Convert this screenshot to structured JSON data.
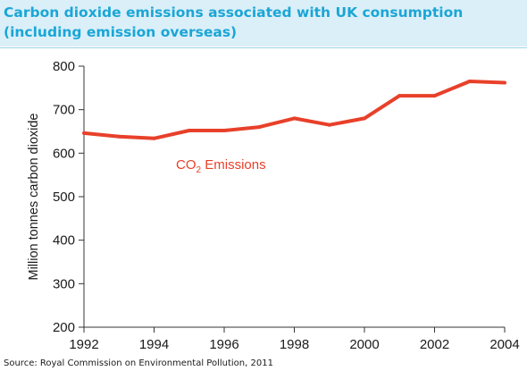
{
  "title": "Carbon dioxide emissions associated with UK consumption (including emission overseas)",
  "source": "Source: Royal Commission on Environmental Pollution, 2011",
  "chart_data": {
    "type": "line",
    "title": "Carbon dioxide emissions associated with UK consumption (including emission overseas)",
    "xlabel": "",
    "ylabel": "Million tonnes carbon dioxide",
    "xlim": [
      1992,
      2004
    ],
    "ylim": [
      200,
      800
    ],
    "x_ticks": [
      1992,
      1994,
      1996,
      1998,
      2000,
      2002,
      2004
    ],
    "y_ticks": [
      200,
      300,
      400,
      500,
      600,
      700,
      800
    ],
    "grid": false,
    "series": [
      {
        "name_main": "CO",
        "name_sub": "2",
        "name_rest": " Emissions",
        "color": "#e8402a",
        "x": [
          1992,
          1993,
          1994,
          1995,
          1996,
          1997,
          1998,
          1999,
          2000,
          2001,
          2002,
          2003,
          2004
        ],
        "y": [
          646,
          638,
          634,
          652,
          652,
          660,
          680,
          665,
          680,
          732,
          732,
          765,
          762
        ]
      }
    ]
  }
}
